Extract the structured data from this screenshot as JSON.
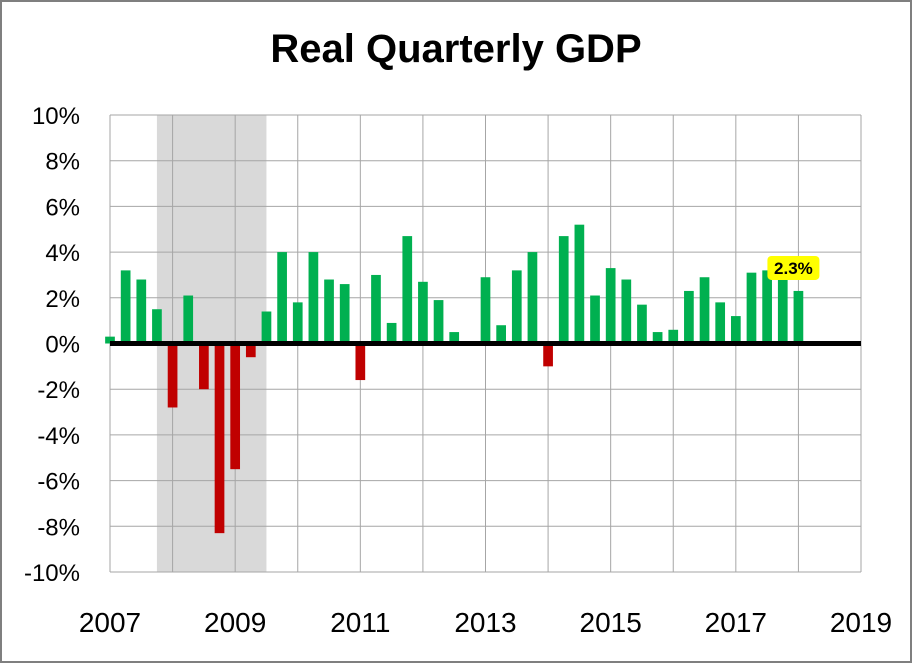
{
  "chart_data": {
    "type": "bar",
    "title": "Real Quarterly GDP",
    "xlabel": "",
    "ylabel": "",
    "ylim": [
      -10,
      10
    ],
    "xlim": [
      2007,
      2019
    ],
    "y_ticks": [
      "10%",
      "8%",
      "6%",
      "4%",
      "2%",
      "0%",
      "-2%",
      "-4%",
      "-6%",
      "-8%",
      "-10%"
    ],
    "y_tick_values": [
      10,
      8,
      6,
      4,
      2,
      0,
      -2,
      -4,
      -6,
      -8,
      -10
    ],
    "x_ticks": [
      "2007",
      "2009",
      "2011",
      "2013",
      "2015",
      "2017",
      "2019"
    ],
    "x_tick_values": [
      2007,
      2009,
      2011,
      2013,
      2015,
      2017,
      2019
    ],
    "grid": true,
    "recession_shading": [
      2007.75,
      2009.5
    ],
    "colors": {
      "positive": "#00b050",
      "negative": "#c00000",
      "recession": "#d9d9d9",
      "grid": "#a6a6a6",
      "zero_line": "#000000",
      "label_highlight": "#ffff00"
    },
    "x": [
      2007.0,
      2007.25,
      2007.5,
      2007.75,
      2008.0,
      2008.25,
      2008.5,
      2008.75,
      2009.0,
      2009.25,
      2009.5,
      2009.75,
      2010.0,
      2010.25,
      2010.5,
      2010.75,
      2011.0,
      2011.25,
      2011.5,
      2011.75,
      2012.0,
      2012.25,
      2012.5,
      2012.75,
      2013.0,
      2013.25,
      2013.5,
      2013.75,
      2014.0,
      2014.25,
      2014.5,
      2014.75,
      2015.0,
      2015.25,
      2015.5,
      2015.75,
      2016.0,
      2016.25,
      2016.5,
      2016.75,
      2017.0,
      2017.25,
      2017.5,
      2017.75,
      2018.0
    ],
    "values": [
      0.3,
      3.2,
      2.8,
      1.5,
      -2.8,
      2.1,
      -2.0,
      -8.3,
      -5.5,
      -0.6,
      1.4,
      4.0,
      1.8,
      4.0,
      2.8,
      2.6,
      -1.6,
      3.0,
      0.9,
      4.7,
      2.7,
      1.9,
      0.5,
      0.1,
      2.9,
      0.8,
      3.2,
      4.0,
      -1.0,
      4.7,
      5.2,
      2.1,
      3.3,
      2.8,
      1.7,
      0.5,
      0.6,
      2.3,
      2.9,
      1.8,
      1.2,
      3.1,
      3.2,
      2.9,
      2.3
    ],
    "data_labels": [
      {
        "index": 44,
        "text": "2.3%"
      }
    ]
  }
}
